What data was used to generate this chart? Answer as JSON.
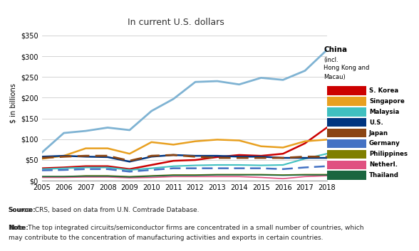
{
  "title": "In current U.S. dollars",
  "ylabel": "$ in billions",
  "years": [
    2005,
    2006,
    2007,
    2008,
    2009,
    2010,
    2011,
    2012,
    2013,
    2014,
    2015,
    2016,
    2017,
    2018
  ],
  "series": {
    "China": {
      "values": [
        68,
        115,
        120,
        128,
        122,
        168,
        197,
        238,
        240,
        232,
        248,
        243,
        265,
        315
      ],
      "color": "#7fb3d3",
      "linestyle": "solid",
      "linewidth": 2.0,
      "dashes": null
    },
    "S. Korea": {
      "values": [
        30,
        32,
        35,
        35,
        28,
        38,
        48,
        50,
        57,
        62,
        60,
        65,
        90,
        128
      ],
      "color": "#cc0000",
      "linestyle": "solid",
      "linewidth": 1.8,
      "dashes": null
    },
    "Singapore": {
      "values": [
        53,
        60,
        78,
        78,
        65,
        93,
        87,
        95,
        99,
        97,
        83,
        80,
        95,
        99
      ],
      "color": "#e8a020",
      "linestyle": "solid",
      "linewidth": 1.8,
      "dashes": null
    },
    "Malaysia": {
      "values": [
        28,
        30,
        32,
        32,
        26,
        30,
        35,
        37,
        38,
        38,
        37,
        38,
        53,
        65
      ],
      "color": "#40c0c0",
      "linestyle": "solid",
      "linewidth": 1.5,
      "dashes": null
    },
    "U.S.": {
      "values": [
        58,
        60,
        58,
        57,
        46,
        58,
        62,
        60,
        60,
        58,
        58,
        55,
        55,
        55
      ],
      "color": "#003580",
      "linestyle": "solid",
      "linewidth": 1.8,
      "dashes": null
    },
    "Japan": {
      "values": [
        55,
        58,
        60,
        60,
        48,
        60,
        62,
        58,
        55,
        55,
        55,
        55,
        58,
        58
      ],
      "color": "#8b4513",
      "linestyle": "dashed",
      "linewidth": 2.0,
      "dashes": [
        6,
        3
      ]
    },
    "Germany": {
      "values": [
        25,
        26,
        28,
        28,
        22,
        26,
        30,
        30,
        30,
        30,
        30,
        28,
        32,
        35
      ],
      "color": "#4472c4",
      "linestyle": "dashed",
      "linewidth": 1.8,
      "dashes": [
        6,
        3
      ]
    },
    "Philippines": {
      "values": [
        10,
        10,
        12,
        12,
        10,
        12,
        14,
        14,
        15,
        15,
        15,
        14,
        15,
        15
      ],
      "color": "#7f7f00",
      "linestyle": "solid",
      "linewidth": 1.2,
      "dashes": null
    },
    "Netherl.": {
      "values": [
        8,
        8,
        9,
        9,
        7,
        8,
        10,
        10,
        10,
        10,
        8,
        5,
        10,
        12
      ],
      "color": "#e05080",
      "linestyle": "solid",
      "linewidth": 1.2,
      "dashes": null
    },
    "Thailand": {
      "values": [
        10,
        10,
        11,
        11,
        9,
        11,
        13,
        13,
        14,
        14,
        14,
        13,
        14,
        14
      ],
      "color": "#1a6640",
      "linestyle": "solid",
      "linewidth": 1.2,
      "dashes": null
    }
  },
  "legend_colors": {
    "S. Korea": "#cc0000",
    "Singapore": "#e8a020",
    "Malaysia": "#40c0c0",
    "U.S.": "#003580",
    "Japan": "#8b4513",
    "Germany": "#4472c4",
    "Philippines": "#7f7f00",
    "Netherl.": "#e05080",
    "Thailand": "#1a6640"
  },
  "china_box_color": "#b0cfe0",
  "ylim": [
    0,
    375
  ],
  "yticks": [
    0,
    50,
    100,
    150,
    200,
    250,
    300,
    350
  ],
  "ytick_labels": [
    "$0",
    "$50",
    "$100",
    "$150",
    "$200",
    "$250",
    "$300",
    "$350"
  ],
  "source_text": "Source: CRS, based on data from U.N. Comtrade Database.",
  "note_text": "Note: The top integrated circuits/semiconductor firms are concentrated in a small number of countries, which\nmay contribute to the concentration of manufacturing activities and exports in certain countries.",
  "bg_color": "#ffffff",
  "plot_bg_color": "#ffffff",
  "grid_color": "#cccccc"
}
